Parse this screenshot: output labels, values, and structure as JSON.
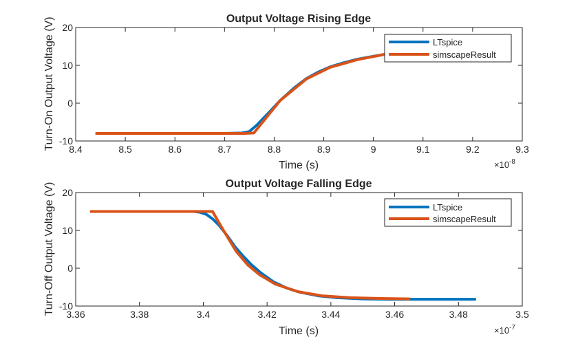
{
  "chart_data": [
    {
      "type": "line",
      "title": "Output Voltage Rising Edge",
      "xlabel": "Time (s)",
      "ylabel": "Turn-On Output Voltage (V)",
      "x_exponent_label": "×10",
      "x_exponent": "-8",
      "xlim": [
        8.4,
        9.3
      ],
      "ylim": [
        -10,
        20
      ],
      "xticks": [
        "8.4",
        "8.5",
        "8.6",
        "8.7",
        "8.8",
        "8.9",
        "9",
        "9.1",
        "9.2",
        "9.3"
      ],
      "xtick_values": [
        8.4,
        8.5,
        8.6,
        8.7,
        8.8,
        8.9,
        9.0,
        9.1,
        9.2,
        9.3
      ],
      "yticks": [
        "-10",
        "0",
        "10",
        "20"
      ],
      "ytick_values": [
        -10,
        0,
        10,
        20
      ],
      "grid": false,
      "legend": {
        "placement": "top-right",
        "entries": [
          "LTspice",
          "simscapeResult"
        ]
      },
      "series": [
        {
          "name": "LTspice",
          "color": "#0072BD",
          "x": [
            8.44,
            8.7,
            8.735,
            8.75,
            8.765,
            8.79,
            8.812,
            8.84,
            8.865,
            8.89,
            8.913,
            8.938,
            8.967,
            9.0,
            9.023,
            9.05
          ],
          "y": [
            -8,
            -8,
            -7.9,
            -7.5,
            -5.8,
            -2.4,
            0.7,
            4.0,
            6.5,
            8.3,
            9.6,
            10.6,
            11.6,
            12.4,
            12.9,
            13.4
          ]
        },
        {
          "name": "simscapeResult",
          "color": "#D95319",
          "x": [
            8.44,
            8.74,
            8.759,
            8.812,
            8.865,
            8.913,
            8.938,
            8.967,
            9.023,
            9.05
          ],
          "y": [
            -8,
            -8,
            -7.9,
            0.7,
            6.4,
            9.5,
            10.4,
            11.5,
            12.9,
            13.4
          ]
        }
      ]
    },
    {
      "type": "line",
      "title": "Output Voltage Falling Edge",
      "xlabel": "Time (s)",
      "ylabel": "Turn-Off Output Voltage (V)",
      "x_exponent_label": "×10",
      "x_exponent": "-7",
      "xlim": [
        3.36,
        3.5
      ],
      "ylim": [
        -10,
        20
      ],
      "xticks": [
        "3.36",
        "3.38",
        "3.4",
        "3.42",
        "3.44",
        "3.46",
        "3.48",
        "3.5"
      ],
      "xtick_values": [
        3.36,
        3.38,
        3.4,
        3.42,
        3.44,
        3.46,
        3.48,
        3.5
      ],
      "yticks": [
        "-10",
        "0",
        "10",
        "20"
      ],
      "ytick_values": [
        -10,
        0,
        10,
        20
      ],
      "grid": false,
      "legend": {
        "placement": "top-right",
        "entries": [
          "LTspice",
          "simscapeResult"
        ]
      },
      "series": [
        {
          "name": "LTspice",
          "color": "#0072BD",
          "x": [
            3.3645,
            3.397,
            3.399,
            3.401,
            3.403,
            3.405,
            3.4075,
            3.41,
            3.4125,
            3.415,
            3.418,
            3.422,
            3.426,
            3.43,
            3.436,
            3.442,
            3.45,
            3.458,
            3.465,
            3.4855
          ],
          "y": [
            15,
            15,
            14.8,
            14.2,
            13.0,
            11.3,
            8.6,
            5.6,
            3.2,
            1.0,
            -1.2,
            -3.6,
            -5.2,
            -6.3,
            -7.3,
            -7.8,
            -8.1,
            -8.2,
            -8.2,
            -8.2
          ]
        },
        {
          "name": "simscapeResult",
          "color": "#D95319",
          "x": [
            3.3645,
            3.4029,
            3.4064,
            3.4103,
            3.4139,
            3.4178,
            3.4226,
            3.4297,
            3.4372,
            3.4463,
            3.4555,
            3.4649
          ],
          "y": [
            15,
            15,
            9.9,
            4.5,
            0.9,
            -1.8,
            -4.2,
            -6.2,
            -7.3,
            -7.8,
            -8.0,
            -8.1
          ]
        }
      ]
    }
  ]
}
